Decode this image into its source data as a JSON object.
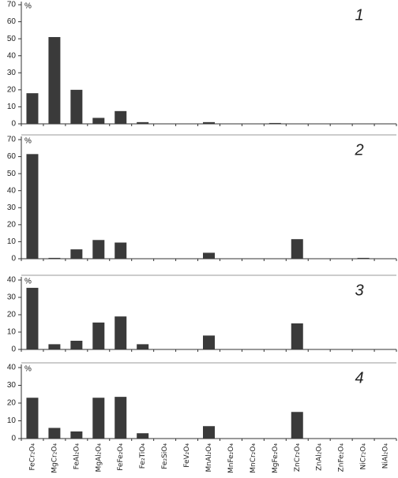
{
  "chart_data": [
    {
      "type": "bar",
      "title": "1",
      "ylabel": "%",
      "color": "#3a3a3a",
      "ylim": [
        0,
        70
      ],
      "yticks": [
        0,
        10,
        20,
        30,
        40,
        50,
        60,
        70
      ],
      "values": [
        18,
        51,
        20,
        3.5,
        7.5,
        1,
        0,
        0,
        1,
        0,
        0,
        0.5,
        0,
        0,
        0,
        0,
        0
      ]
    },
    {
      "type": "bar",
      "title": "2",
      "ylabel": "%",
      "color": "#3a3a3a",
      "ylim": [
        0,
        70
      ],
      "yticks": [
        0,
        10,
        20,
        30,
        40,
        50,
        60,
        70
      ],
      "values": [
        61.5,
        0.5,
        5.5,
        11,
        9.5,
        0,
        0,
        0,
        3.5,
        0,
        0,
        0,
        11.5,
        0,
        0,
        0.5,
        0
      ]
    },
    {
      "type": "bar",
      "title": "3",
      "ylabel": "%",
      "color": "#3a3a3a",
      "ylim": [
        0,
        40
      ],
      "yticks": [
        0,
        10,
        20,
        30,
        40
      ],
      "values": [
        35.5,
        3,
        5,
        15.5,
        19,
        3,
        0,
        0,
        8,
        0,
        0,
        0,
        15,
        0,
        0,
        0,
        0
      ]
    },
    {
      "type": "bar",
      "title": "4",
      "ylabel": "%",
      "color": "#3a3a3a",
      "ylim": [
        0,
        40
      ],
      "yticks": [
        0,
        10,
        20,
        30,
        40
      ],
      "categories": [
        "FeCr₂O₄",
        "MgCr₂O₄",
        "FeAl₂O₄",
        "MgAl₂O₄",
        "FeFe₂O₄",
        "Fe₂TiO₄",
        "Fe₂SiO₄",
        "FeV₂O₄",
        "MnAl₂O₄",
        "MnFe₂O₄",
        "MnCr₂O₄",
        "MgFe₂O₄",
        "ZnCr₂O₄",
        "ZnAl₂O₄",
        "ZnFe₂O₄",
        "NiCr₂O₄",
        "NiAl₂O₄"
      ],
      "values": [
        23,
        6,
        4,
        23,
        23.5,
        3,
        0,
        0,
        7,
        0,
        0,
        0,
        15,
        0,
        0,
        0,
        0
      ]
    }
  ]
}
